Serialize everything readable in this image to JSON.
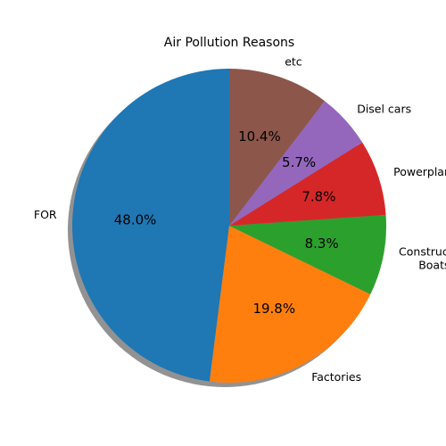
{
  "chart_data": {
    "type": "pie",
    "title": "Air Pollution Reasons",
    "slices": [
      {
        "label": "FOR",
        "value": 48.0,
        "pct_label": "48.0%",
        "color": "#1f77b4"
      },
      {
        "label": "Factories",
        "value": 19.8,
        "pct_label": "19.8%",
        "color": "#ff7f0e"
      },
      {
        "label": "Construction\nBoats",
        "value": 8.3,
        "pct_label": "8.3%",
        "color": "#2ca02c"
      },
      {
        "label": "Powerplants",
        "value": 7.8,
        "pct_label": "7.8%",
        "color": "#d62728"
      },
      {
        "label": "Disel cars",
        "value": 5.7,
        "pct_label": "5.7%",
        "color": "#9467bd"
      },
      {
        "label": "etc",
        "value": 10.4,
        "pct_label": "10.4%",
        "color": "#8c564b"
      }
    ],
    "start_angle_deg": 90,
    "direction": "counterclockwise",
    "shadow": true,
    "legend": "none"
  }
}
